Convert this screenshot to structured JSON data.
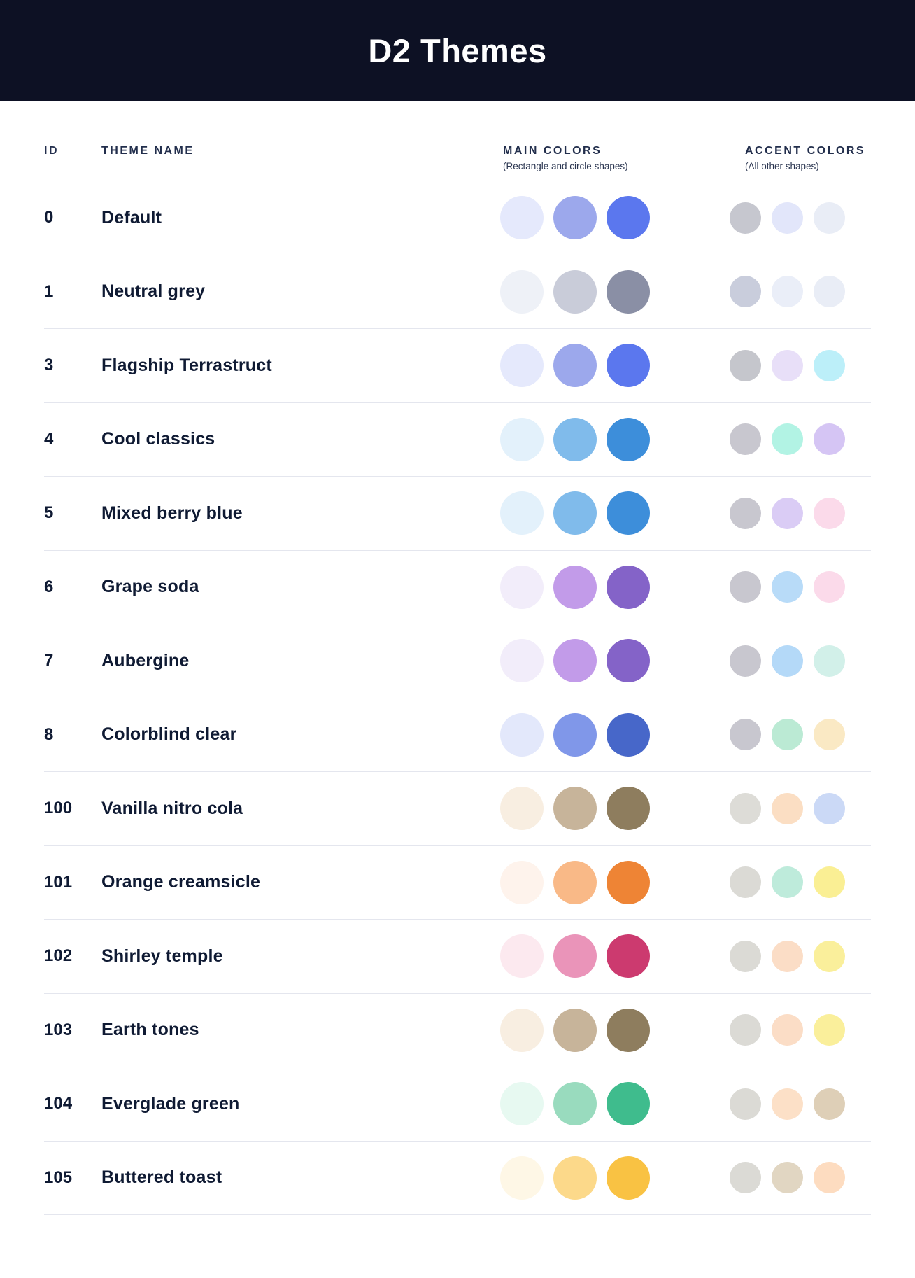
{
  "header": {
    "title": "D2 Themes"
  },
  "colors": {
    "banner_bg": "#0D1124",
    "text": "#0F1A33",
    "divider": "#E4E6EE"
  },
  "table": {
    "columns": {
      "id": "ID",
      "theme_name": "THEME NAME",
      "main_colors": "MAIN COLORS",
      "main_colors_sub": "(Rectangle and circle shapes)",
      "accent_colors": "ACCENT COLORS",
      "accent_colors_sub": "(All other shapes)"
    },
    "rows": [
      {
        "id": "0",
        "name": "Default",
        "main": [
          "#E5E9FC",
          "#9CA8EC",
          "#5B77EE"
        ],
        "accent": [
          "#C6C7CF",
          "#E2E6FA",
          "#E9EDF6"
        ]
      },
      {
        "id": "1",
        "name": "Neutral grey",
        "main": [
          "#EEF1F7",
          "#C9CCD9",
          "#8A8FA5"
        ],
        "accent": [
          "#C9CDDC",
          "#EAEEF8",
          "#E9EDF6"
        ]
      },
      {
        "id": "3",
        "name": "Flagship Terrastruct",
        "main": [
          "#E5E9FC",
          "#9CA8EC",
          "#5B77EE"
        ],
        "accent": [
          "#C5C6CC",
          "#E8DFF8",
          "#BCEFF9"
        ]
      },
      {
        "id": "4",
        "name": "Cool classics",
        "main": [
          "#E3F1FB",
          "#80BBEB",
          "#3D8EDA"
        ],
        "accent": [
          "#C8C7CF",
          "#B2F3E4",
          "#D5C5F4"
        ]
      },
      {
        "id": "5",
        "name": "Mixed berry blue",
        "main": [
          "#E3F1FB",
          "#80BBEB",
          "#3D8EDA"
        ],
        "accent": [
          "#C8C7CF",
          "#DACCF5",
          "#FBDAEA"
        ]
      },
      {
        "id": "6",
        "name": "Grape soda",
        "main": [
          "#F2EDFA",
          "#C29BE9",
          "#8463C8"
        ],
        "accent": [
          "#C8C7CF",
          "#B8DBF8",
          "#FBDAEA"
        ]
      },
      {
        "id": "7",
        "name": "Aubergine",
        "main": [
          "#F2EDFA",
          "#C29BE9",
          "#8463C8"
        ],
        "accent": [
          "#C8C7CF",
          "#B4D9F8",
          "#D2F0E9"
        ]
      },
      {
        "id": "8",
        "name": "Colorblind clear",
        "main": [
          "#E3E8FB",
          "#8097E9",
          "#4767C9"
        ],
        "accent": [
          "#C8C7CF",
          "#BBEAD4",
          "#FAE9C4"
        ]
      },
      {
        "id": "100",
        "name": "Vanilla nitro cola",
        "main": [
          "#F8EEE1",
          "#C7B49A",
          "#8E7D5E"
        ],
        "accent": [
          "#DDDCD7",
          "#FBDEC3",
          "#CBD9F6"
        ]
      },
      {
        "id": "101",
        "name": "Orange creamsicle",
        "main": [
          "#FEF3EC",
          "#F9B987",
          "#EE8435"
        ],
        "accent": [
          "#DBDAD5",
          "#BEEBDB",
          "#FAEF94"
        ]
      },
      {
        "id": "102",
        "name": "Shirley temple",
        "main": [
          "#FCE9EF",
          "#EA94B9",
          "#CC3A6F"
        ],
        "accent": [
          "#DBDAD5",
          "#FBDDC6",
          "#FAEF9B"
        ]
      },
      {
        "id": "103",
        "name": "Earth tones",
        "main": [
          "#F8EEE1",
          "#C7B49A",
          "#8E7D5E"
        ],
        "accent": [
          "#DBDAD5",
          "#FBDDC6",
          "#FAEF9B"
        ]
      },
      {
        "id": "104",
        "name": "Everglade green",
        "main": [
          "#E7F9F1",
          "#99DBBE",
          "#3FBC8D"
        ],
        "accent": [
          "#DBDAD5",
          "#FCE0C7",
          "#DECFB7"
        ]
      },
      {
        "id": "105",
        "name": "Buttered toast",
        "main": [
          "#FEF7E6",
          "#FCD98A",
          "#F9C243"
        ],
        "accent": [
          "#DBDAD5",
          "#E1D6C2",
          "#FDDCC0"
        ]
      }
    ]
  }
}
